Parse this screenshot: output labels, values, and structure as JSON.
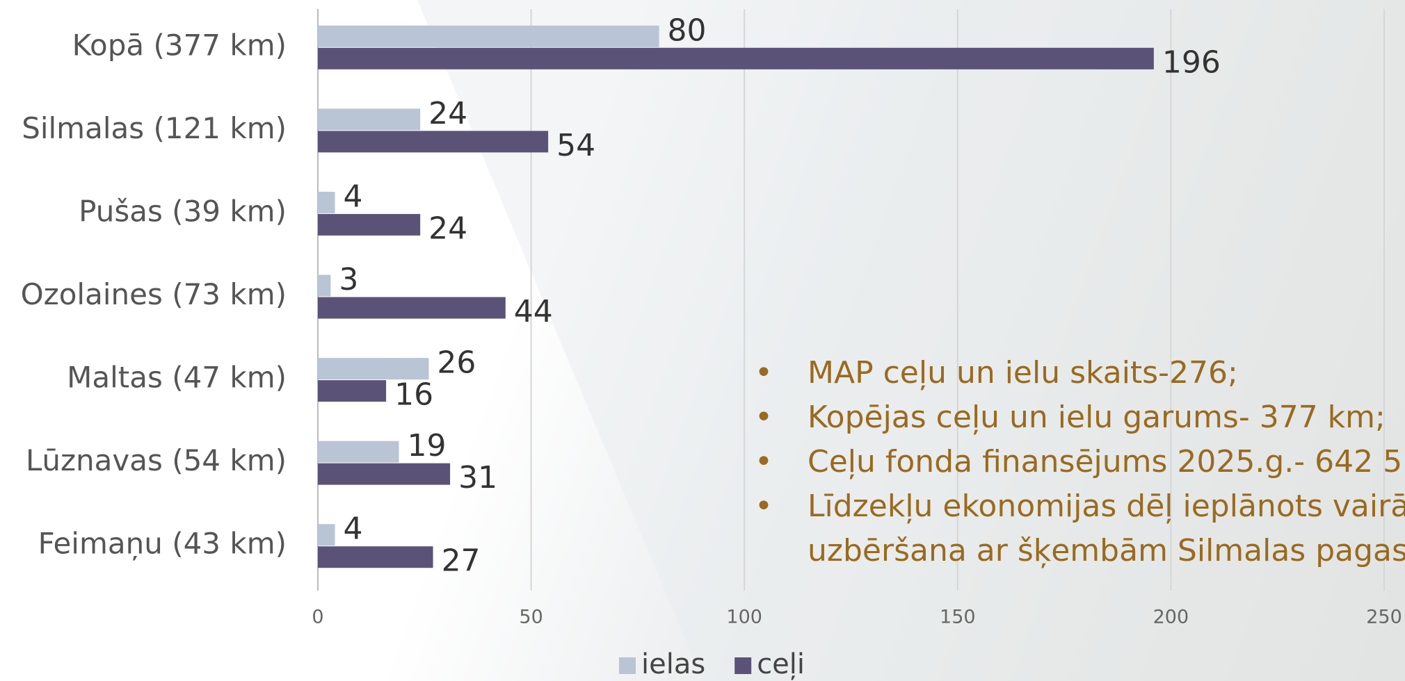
{
  "chart_data": {
    "type": "bar",
    "orientation": "horizontal",
    "categories": [
      "Kopā (377 km)",
      "Silmalas (121 km)",
      "Pušas (39 km)",
      "Ozolaines (73 km)",
      "Maltas (47 km)",
      "Lūznavas (54 km)",
      "Feimaņu (43 km)"
    ],
    "series": [
      {
        "name": "ielas",
        "color": "#b9c4d5",
        "values": [
          80,
          24,
          4,
          3,
          26,
          19,
          4
        ]
      },
      {
        "name": "ceļi",
        "color": "#5b5377",
        "values": [
          196,
          54,
          24,
          44,
          16,
          31,
          27
        ]
      }
    ],
    "xlim": [
      0,
      250
    ],
    "xticks": [
      0,
      50,
      100,
      150,
      200,
      250
    ],
    "grid": true,
    "legend": "bottom"
  },
  "bullets": [
    [
      "MAP ceļu un ielu skaits-276;"
    ],
    [
      "Kopējas ceļu un ielu garums- 377 km;"
    ],
    [
      "Ceļu fonda finansējums 2025.g.- 642 5"
    ],
    [
      "Līdzekļu ekonomijas dēļ ieplānots vairā",
      "uzbēršana ar šķembām Silmalas pagas"
    ]
  ]
}
